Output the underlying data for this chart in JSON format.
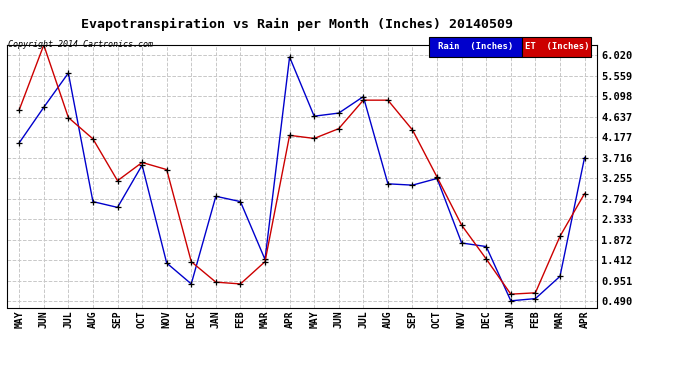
{
  "title": "Evapotranspiration vs Rain per Month (Inches) 20140509",
  "copyright": "Copyright 2014 Cartronics.com",
  "months": [
    "MAY",
    "JUN",
    "JUL",
    "AUG",
    "SEP",
    "OCT",
    "NOV",
    "DEC",
    "JAN",
    "FEB",
    "MAR",
    "APR",
    "MAY",
    "JUN",
    "JUL",
    "AUG",
    "SEP",
    "OCT",
    "NOV",
    "DEC",
    "JAN",
    "FEB",
    "MAR",
    "APR"
  ],
  "rain": [
    4.05,
    4.85,
    5.62,
    2.73,
    2.6,
    3.55,
    1.35,
    0.88,
    2.85,
    2.73,
    1.43,
    5.98,
    4.65,
    4.72,
    5.09,
    3.13,
    3.1,
    3.25,
    1.8,
    1.72,
    0.5,
    0.55,
    1.05,
    3.72
  ],
  "et": [
    4.79,
    6.25,
    4.62,
    4.14,
    3.2,
    3.61,
    3.45,
    1.38,
    0.92,
    0.88,
    1.38,
    4.22,
    4.15,
    4.37,
    5.01,
    5.01,
    4.34,
    3.28,
    2.2,
    1.44,
    0.65,
    0.68,
    1.95,
    2.91
  ],
  "rain_color": "#0000cc",
  "et_color": "#cc0000",
  "bg_color": "#ffffff",
  "grid_color": "#c8c8c8",
  "yticks": [
    0.49,
    0.951,
    1.412,
    1.872,
    2.333,
    2.794,
    3.255,
    3.716,
    4.177,
    4.637,
    5.098,
    5.559,
    6.02
  ],
  "ylim": [
    0.35,
    6.25
  ],
  "marker": "+"
}
